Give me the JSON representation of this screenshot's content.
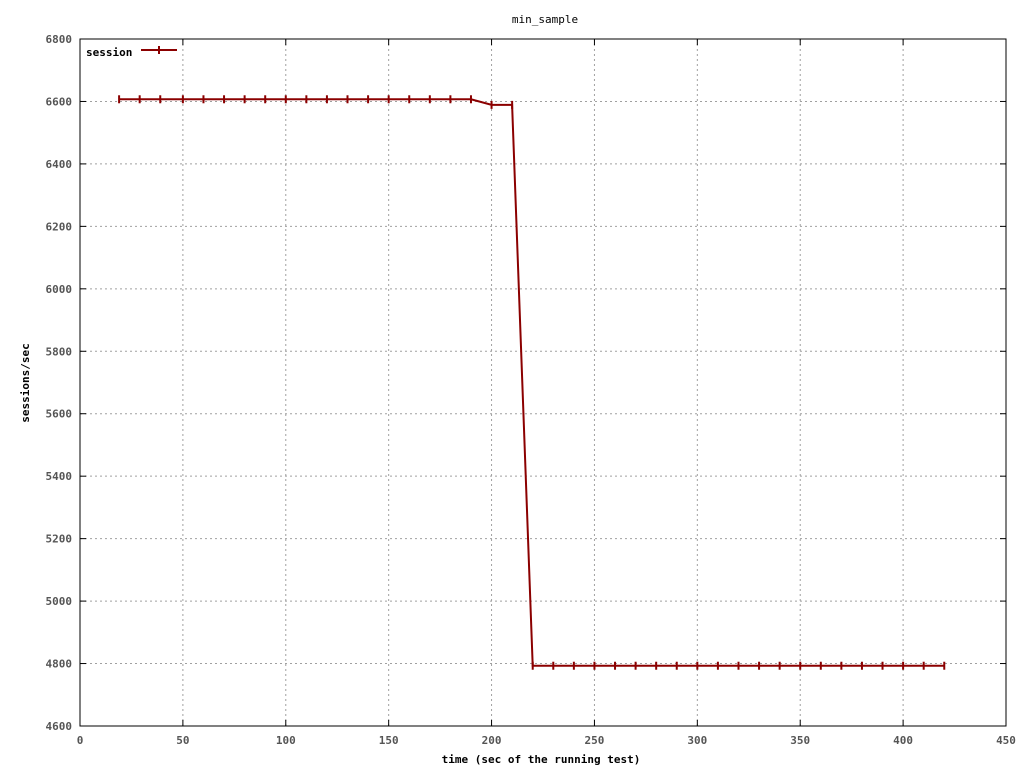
{
  "chart_data": {
    "type": "line",
    "title": "min_sample",
    "xlabel": "time (sec of the running test)",
    "ylabel": "sessions/sec",
    "xlim": [
      0,
      450
    ],
    "ylim": [
      4600,
      6800
    ],
    "xticks": [
      0,
      50,
      100,
      150,
      200,
      250,
      300,
      350,
      400,
      450
    ],
    "yticks": [
      4600,
      4800,
      5000,
      5200,
      5400,
      5600,
      5800,
      6000,
      6200,
      6400,
      6600,
      6800
    ],
    "grid": true,
    "legend_position": "top-left",
    "series": [
      {
        "name": "session",
        "color": "#8b0000",
        "x": [
          19,
          29,
          39,
          50,
          60,
          70,
          80,
          90,
          100,
          110,
          120,
          130,
          140,
          150,
          160,
          170,
          180,
          190,
          200,
          210,
          220,
          230,
          240,
          250,
          260,
          270,
          280,
          290,
          300,
          310,
          320,
          330,
          340,
          350,
          360,
          370,
          380,
          390,
          400,
          410,
          420
        ],
        "y": [
          6607,
          6607,
          6607,
          6607,
          6607,
          6607,
          6607,
          6607,
          6607,
          6607,
          6607,
          6607,
          6607,
          6607,
          6607,
          6607,
          6607,
          6607,
          6589,
          6589,
          4793,
          4793,
          4793,
          4793,
          4793,
          4793,
          4793,
          4793,
          4793,
          4793,
          4793,
          4793,
          4793,
          4793,
          4793,
          4793,
          4793,
          4793,
          4793,
          4793,
          4793
        ]
      }
    ]
  }
}
